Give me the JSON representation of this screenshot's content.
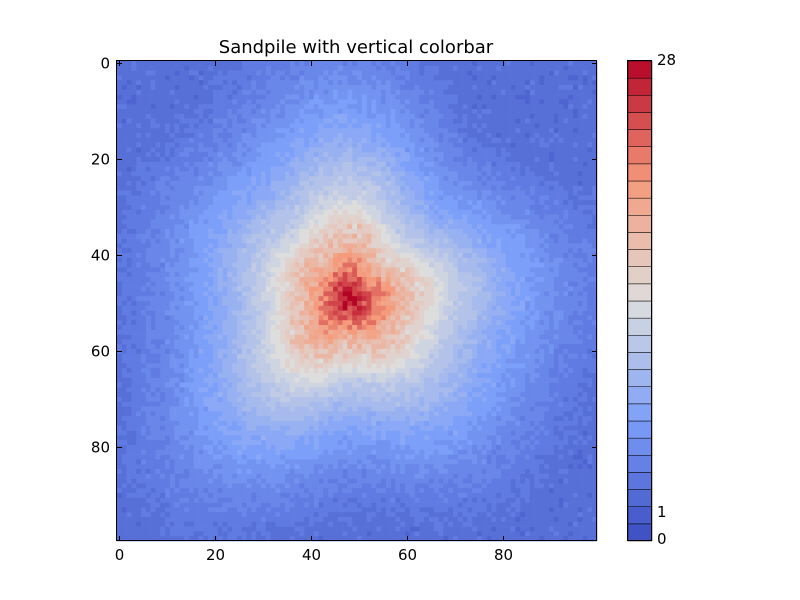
{
  "chart_data": {
    "type": "heatmap",
    "title": "Sandpile with vertical colorbar",
    "xlabel": "",
    "ylabel": "",
    "grid": false,
    "colormap": "coolwarm",
    "x_range": [
      0,
      99
    ],
    "y_range": [
      0,
      99
    ],
    "y_inverted": true,
    "value_range": [
      0,
      28
    ],
    "x_ticks": [
      {
        "value": 0,
        "label": "0"
      },
      {
        "value": 20,
        "label": "20"
      },
      {
        "value": 40,
        "label": "40"
      },
      {
        "value": 60,
        "label": "60"
      },
      {
        "value": 80,
        "label": "80"
      }
    ],
    "y_ticks": [
      {
        "value": 0,
        "label": "0"
      },
      {
        "value": 20,
        "label": "20"
      },
      {
        "value": 40,
        "label": "40"
      },
      {
        "value": 60,
        "label": "60"
      },
      {
        "value": 80,
        "label": "80"
      }
    ],
    "colorbar": {
      "orientation": "vertical",
      "levels": 28,
      "ticks": [
        {
          "value": 0,
          "label": "0"
        },
        {
          "value": 1,
          "label": "1"
        },
        {
          "value": 28,
          "label": "28"
        }
      ]
    },
    "approx_field": {
      "center": [
        48,
        49
      ],
      "peak_value": 28,
      "value_at_center_region": 20,
      "description_levels": [
        {
          "radius": 0,
          "value": 28
        },
        {
          "radius": 10,
          "value": 18
        },
        {
          "radius": 20,
          "value": 12
        },
        {
          "radius": 30,
          "value": 8
        },
        {
          "radius": 42,
          "value": 5
        },
        {
          "radius": 55,
          "value": 3
        }
      ]
    },
    "colors": {
      "low": "#3b4cc0",
      "mid": "#dddddd",
      "high": "#b40426"
    }
  }
}
